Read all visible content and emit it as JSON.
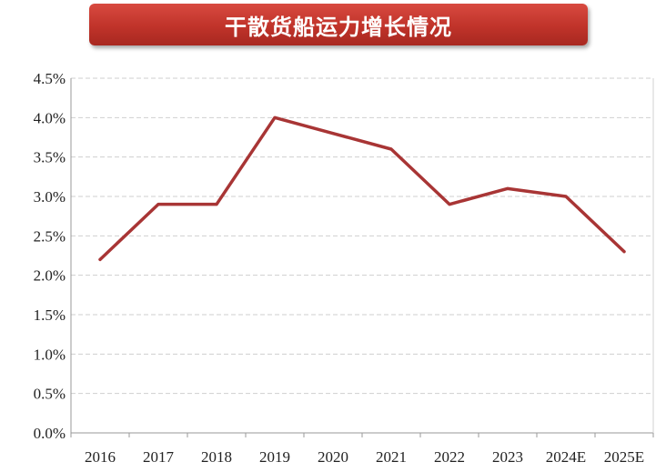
{
  "chart_data": {
    "type": "line",
    "title": "干散货船运力增长情况",
    "xlabel": "",
    "ylabel": "",
    "categories": [
      "2016",
      "2017",
      "2018",
      "2019",
      "2020",
      "2021",
      "2022",
      "2023",
      "2024E",
      "2025E"
    ],
    "series": [
      {
        "values": [
          2.2,
          2.9,
          2.9,
          4.0,
          3.8,
          3.6,
          2.9,
          3.1,
          3.0,
          2.3
        ],
        "color": "#a83535"
      }
    ],
    "ylim": [
      0,
      4.5
    ],
    "yticks": [
      "0.0%",
      "0.5%",
      "1.0%",
      "1.5%",
      "2.0%",
      "2.5%",
      "3.0%",
      "3.5%",
      "4.0%",
      "4.5%"
    ],
    "grid": true,
    "legend": "none"
  }
}
